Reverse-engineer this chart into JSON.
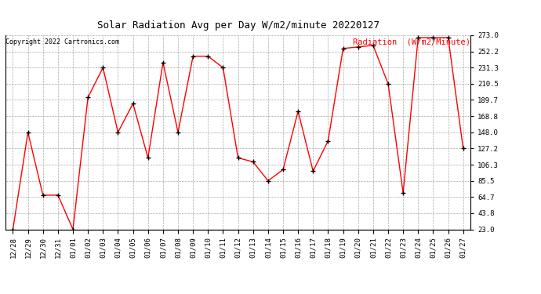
{
  "title": "Solar Radiation Avg per Day W/m2/minute 20220127",
  "copyright": "Copyright 2022 Cartronics.com",
  "legend_label": "Radiation  (W/m2/Minute)",
  "dates": [
    "12/28",
    "12/29",
    "12/30",
    "12/31",
    "01/01",
    "01/02",
    "01/03",
    "01/04",
    "01/05",
    "01/06",
    "01/07",
    "01/08",
    "01/09",
    "01/10",
    "01/11",
    "01/12",
    "01/13",
    "01/14",
    "01/15",
    "01/16",
    "01/17",
    "01/18",
    "01/19",
    "01/20",
    "01/21",
    "01/22",
    "01/23",
    "01/24",
    "01/25",
    "01/26",
    "01/27"
  ],
  "values": [
    23.0,
    148.0,
    67.0,
    67.0,
    23.0,
    193.0,
    231.3,
    148.0,
    185.0,
    115.0,
    238.0,
    148.0,
    246.0,
    246.0,
    231.3,
    115.0,
    110.0,
    85.5,
    100.0,
    175.0,
    98.0,
    137.0,
    256.0,
    258.0,
    260.0,
    210.5,
    70.0,
    270.0,
    270.0,
    270.0,
    127.2
  ],
  "line_color": "red",
  "marker": "+",
  "marker_color": "black",
  "ylim": [
    23.0,
    273.0
  ],
  "yticks": [
    23.0,
    43.8,
    64.7,
    85.5,
    106.3,
    127.2,
    148.0,
    168.8,
    189.7,
    210.5,
    231.3,
    252.2,
    273.0
  ],
  "background_color": "white",
  "grid_color": "#aaaaaa",
  "title_fontsize": 9,
  "copyright_fontsize": 6,
  "legend_fontsize": 7.5,
  "tick_fontsize": 6.5
}
